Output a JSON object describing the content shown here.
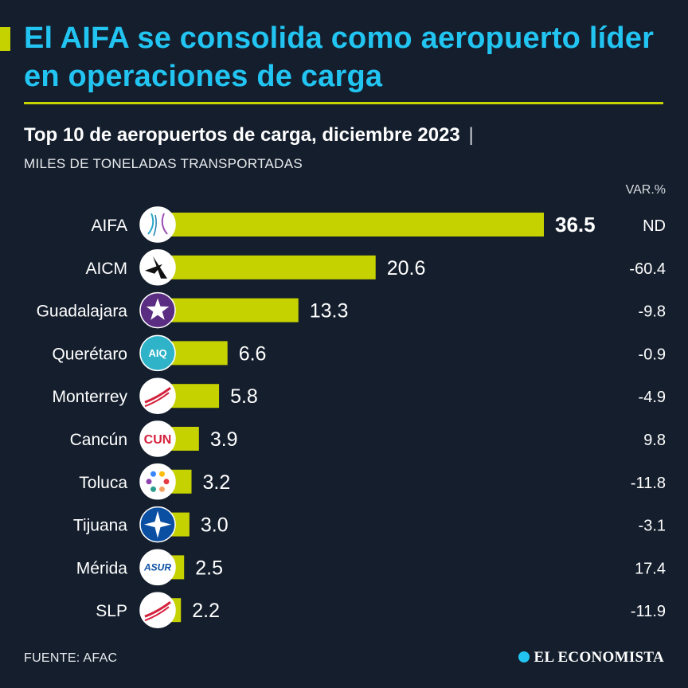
{
  "header": {
    "title": "El AIFA se consolida como aeropuerto líder en operaciones de carga",
    "subtitle": "Top 10 de aeropuertos de carga, diciembre 2023",
    "subtitle_pipe": "|",
    "units": "MILES DE TONELADAS TRANSPORTADAS",
    "var_header": "VAR.%"
  },
  "footer": {
    "source": "FUENTE: AFAC",
    "brand": "EL ECONOMISTA"
  },
  "colors": {
    "background": "#141e2c",
    "title": "#22c4f2",
    "accent": "#c6d200",
    "bar": "#c6d200",
    "text": "#ffffff"
  },
  "chart_data": {
    "type": "bar",
    "orientation": "horizontal",
    "categories": [
      "AIFA",
      "AICM",
      "Guadalajara",
      "Querétaro",
      "Monterrey",
      "Cancún",
      "Toluca",
      "Tijuana",
      "Mérida",
      "SLP"
    ],
    "values": [
      36.5,
      20.6,
      13.3,
      6.6,
      5.8,
      3.9,
      3.2,
      3.0,
      2.5,
      2.2
    ],
    "value_labels": [
      "36.5",
      "20.6",
      "13.3",
      "6.6",
      "5.8",
      "3.9",
      "3.2",
      "3.0",
      "2.5",
      "2.2"
    ],
    "variation_labels": [
      "ND",
      "-60.4",
      "-9.8",
      "-0.9",
      "-4.9",
      "9.8",
      "-11.8",
      "-3.1",
      "17.4",
      "-11.9"
    ],
    "logos": [
      "aifa-logo",
      "aicm-logo",
      "guadalajara-logo",
      "queretaro-logo",
      "monterrey-logo",
      "cancun-logo",
      "toluca-logo",
      "tijuana-logo",
      "merida-logo",
      "slp-logo"
    ],
    "logo_texts": [
      "",
      "",
      "",
      "AIQ",
      "",
      "CUN",
      "",
      "",
      "ASUR",
      ""
    ],
    "title": "Top 10 de aeropuertos de carga, diciembre 2023",
    "xlabel": "",
    "ylabel": "MILES DE TONELADAS TRANSPORTADAS",
    "xlim": [
      0,
      36.5
    ],
    "grid": false,
    "legend": "none"
  }
}
